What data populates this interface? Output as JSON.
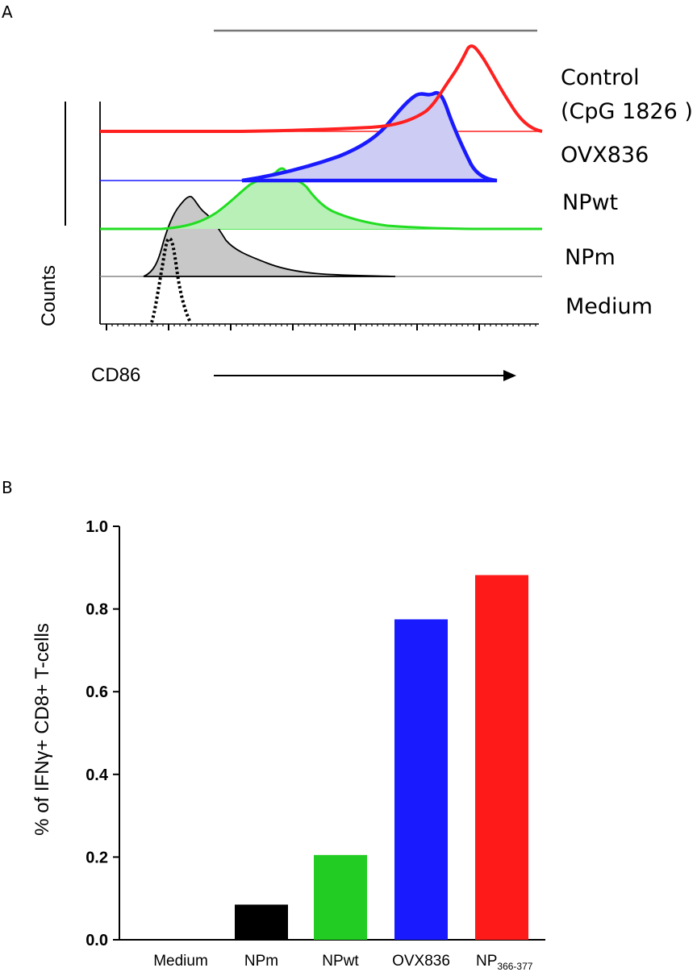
{
  "panel_a": {
    "letter": "A",
    "xlabel": "CD86",
    "ylabel": "Counts",
    "colors": {
      "control": "#ff2020",
      "ovx836": "#1a1aff",
      "npwt": "#22dd22",
      "npm": "#000000",
      "medium": "#000000"
    },
    "legend": {
      "control_line1": "Control",
      "control_line2": "(CpG 1826 )",
      "ovx836": "OVX836",
      "npwt": "NPwt",
      "npm": "NPm",
      "medium": "Medium"
    }
  },
  "panel_b": {
    "letter": "B",
    "ylabel": "% of IFNγ+ CD8+ T-cells",
    "yticks": [
      "0.0",
      "0.2",
      "0.4",
      "0.6",
      "0.8",
      "1.0"
    ],
    "nplabel": {
      "base": "NP",
      "sub": "366-377"
    }
  },
  "chart_data": [
    {
      "type": "histogram",
      "title": "",
      "xlabel": "CD86",
      "ylabel": "Counts",
      "series": [
        {
          "name": "Control (CpG 1826 )",
          "color": "#ff2020",
          "filled": false,
          "peak_position": 0.85
        },
        {
          "name": "OVX836",
          "color": "#1a1aff",
          "filled": true,
          "peak_position": 0.76
        },
        {
          "name": "NPwt",
          "color": "#22dd22",
          "filled": true,
          "peak_position": 0.41
        },
        {
          "name": "NPm",
          "color": "#000000",
          "filled": true,
          "peak_position": 0.21
        },
        {
          "name": "Medium",
          "color": "#000000",
          "filled": false,
          "dashed": true,
          "peak_position": 0.15
        }
      ]
    },
    {
      "type": "bar",
      "title": "",
      "xlabel": "",
      "ylabel": "% of IFNγ+ CD8+ T-cells",
      "categories": [
        "Medium",
        "NPm",
        "NPwt",
        "OVX836",
        "NP366-377"
      ],
      "values": [
        0.0,
        0.085,
        0.205,
        0.775,
        0.882
      ],
      "colors": [
        "#000000",
        "#000000",
        "#22cc22",
        "#1a1aff",
        "#ff1a1a"
      ],
      "ylim": [
        0.0,
        1.0
      ],
      "yticks": [
        0.0,
        0.2,
        0.4,
        0.6,
        0.8,
        1.0
      ],
      "grid": false
    }
  ]
}
